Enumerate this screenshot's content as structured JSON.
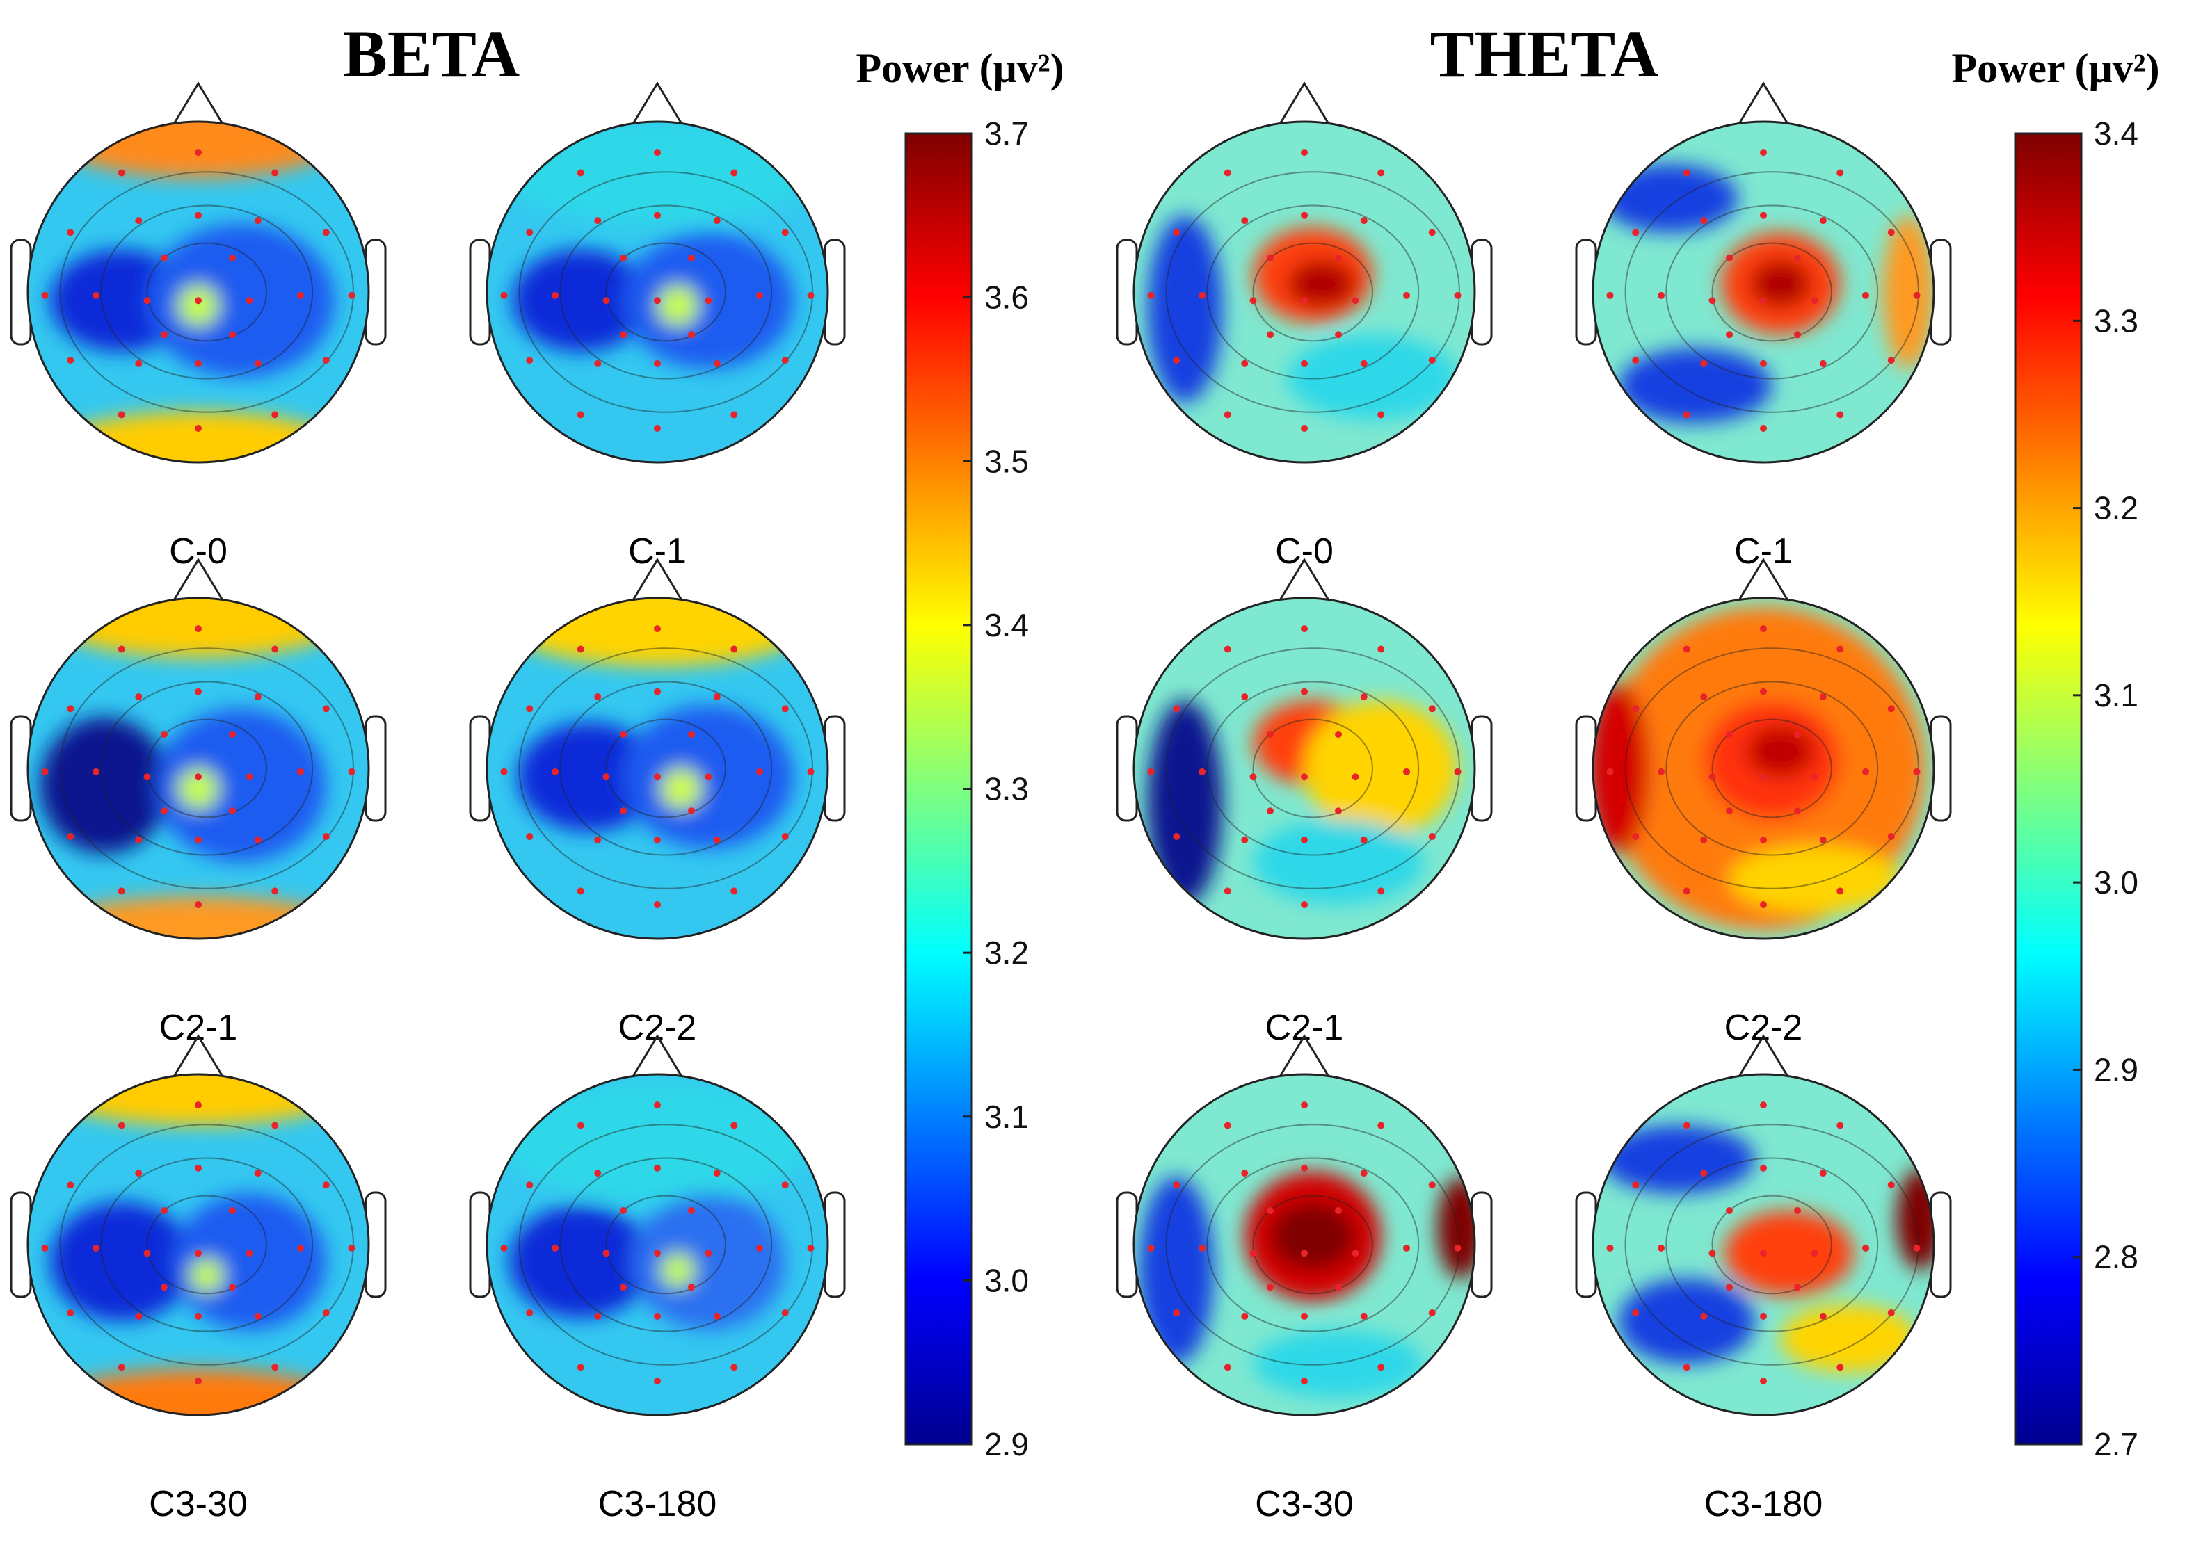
{
  "figure": {
    "colormap": "jet",
    "electrode_color": "#e8242a",
    "contour_color": "#222222",
    "head_outline_color": "#222222",
    "panels": [
      {
        "id": "beta",
        "title": "BETA",
        "power_label": "Power (μv²)",
        "colorbar": {
          "min": 2.9,
          "max": 3.7,
          "ticks": [
            "3.7",
            "3.6",
            "3.5",
            "3.4",
            "3.3",
            "3.2",
            "3.1",
            "3.0",
            "2.9"
          ]
        },
        "maps": [
          {
            "label": "C-0"
          },
          {
            "label": "C-1"
          },
          {
            "label": "C2-1"
          },
          {
            "label": "C2-2"
          },
          {
            "label": "C3-30"
          },
          {
            "label": "C3-180"
          }
        ]
      },
      {
        "id": "theta",
        "title": "THETA",
        "power_label": "Power (μv²)",
        "colorbar": {
          "min": 2.7,
          "max": 3.4,
          "ticks": [
            "3.4",
            "3.3",
            "3.2",
            "3.1",
            "3.0",
            "2.9",
            "2.8",
            "2.7"
          ]
        },
        "maps": [
          {
            "label": "C-0"
          },
          {
            "label": "C-1"
          },
          {
            "label": "C2-1"
          },
          {
            "label": "C2-2"
          },
          {
            "label": "C3-30"
          },
          {
            "label": "C3-180"
          }
        ]
      }
    ]
  }
}
